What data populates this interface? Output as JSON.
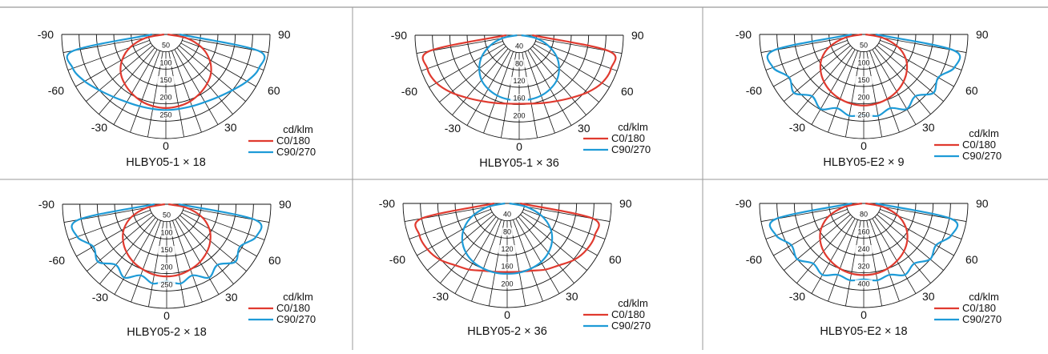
{
  "colors": {
    "c0": "#e03a2f",
    "c90": "#1e9bd7",
    "grid": "#111111",
    "frame": "#9a9a9a"
  },
  "chart_data": [
    {
      "type": "polar",
      "title": "HLBY05-1 × 18",
      "unit": "cd/klm",
      "angle_labels": {
        "left_top": "-90",
        "right_top": "90",
        "left_60": "-60",
        "right_60": "60",
        "left_30": "-30",
        "right_30": "30",
        "bottom": "0"
      },
      "ring_labels": [
        "50",
        "100",
        "150",
        "200",
        "250"
      ],
      "r_max": 300,
      "series": [
        {
          "name": "C0/180",
          "angles": [
            0,
            10,
            20,
            30,
            40,
            50,
            60,
            70,
            80,
            90
          ],
          "values": [
            212,
            210,
            205,
            196,
            185,
            170,
            145,
            110,
            60,
            5
          ]
        },
        {
          "name": "C90/270",
          "angles": [
            0,
            10,
            20,
            30,
            40,
            50,
            60,
            70,
            80,
            90
          ],
          "values": [
            218,
            218,
            220,
            225,
            235,
            250,
            270,
            285,
            270,
            40
          ]
        }
      ]
    },
    {
      "type": "polar",
      "title": "HLBY05-1 × 36",
      "unit": "cd/klm",
      "angle_labels": {
        "left_top": "-90",
        "right_top": "90",
        "left_60": "-60",
        "right_60": "60",
        "left_30": "-30",
        "right_30": "30",
        "bottom": "0"
      },
      "ring_labels": [
        "40",
        "80",
        "120",
        "160",
        "200"
      ],
      "r_max": 240,
      "series": [
        {
          "name": "C0/180",
          "angles": [
            0,
            10,
            20,
            30,
            40,
            50,
            60,
            70,
            80,
            90
          ],
          "values": [
            158,
            160,
            166,
            175,
            188,
            205,
            220,
            225,
            210,
            30
          ]
        },
        {
          "name": "C90/270",
          "angles": [
            0,
            10,
            20,
            30,
            40,
            50,
            60,
            70,
            80,
            90
          ],
          "values": [
            150,
            150,
            148,
            143,
            135,
            120,
            100,
            72,
            40,
            5
          ]
        }
      ]
    },
    {
      "type": "polar",
      "title": "HLBY05-E2 × 9",
      "unit": "cd/klm",
      "angle_labels": {
        "left_top": "-90",
        "right_top": "90",
        "left_60": "-60",
        "right_60": "60",
        "left_30": "-30",
        "right_30": "30",
        "bottom": "0"
      },
      "ring_labels": [
        "50",
        "100",
        "150",
        "200",
        "250"
      ],
      "r_max": 300,
      "series": [
        {
          "name": "C0/180",
          "angles": [
            0,
            10,
            20,
            30,
            40,
            50,
            60,
            70,
            80,
            90
          ],
          "values": [
            205,
            203,
            198,
            190,
            178,
            162,
            140,
            105,
            55,
            5
          ]
        },
        {
          "name": "C90/270",
          "angles": [
            0,
            10,
            20,
            30,
            40,
            50,
            60,
            70,
            80,
            90
          ],
          "values": [
            232,
            238,
            226,
            248,
            232,
            262,
            248,
            278,
            262,
            35
          ]
        }
      ]
    },
    {
      "type": "polar",
      "title": "HLBY05-2 × 18",
      "unit": "cd/klm",
      "angle_labels": {
        "left_top": "-90",
        "right_top": "90",
        "left_60": "-60",
        "right_60": "60",
        "left_30": "-30",
        "right_30": "30",
        "bottom": "0"
      },
      "ring_labels": [
        "50",
        "100",
        "150",
        "200",
        "250"
      ],
      "r_max": 300,
      "series": [
        {
          "name": "C0/180",
          "angles": [
            0,
            10,
            20,
            30,
            40,
            50,
            60,
            70,
            80,
            90
          ],
          "values": [
            208,
            206,
            200,
            192,
            180,
            164,
            142,
            108,
            58,
            5
          ]
        },
        {
          "name": "C90/270",
          "angles": [
            0,
            10,
            20,
            30,
            40,
            50,
            60,
            70,
            80,
            90
          ],
          "values": [
            222,
            232,
            218,
            244,
            228,
            258,
            244,
            274,
            258,
            35
          ]
        }
      ]
    },
    {
      "type": "polar",
      "title": "HLBY05-2 × 36",
      "unit": "cd/klm",
      "angle_labels": {
        "left_top": "-90",
        "right_top": "90",
        "left_60": "-60",
        "right_60": "60",
        "left_30": "-30",
        "right_30": "30",
        "bottom": "0"
      },
      "ring_labels": [
        "40",
        "80",
        "120",
        "160",
        "200"
      ],
      "r_max": 240,
      "series": [
        {
          "name": "C0/180",
          "angles": [
            0,
            10,
            20,
            30,
            40,
            50,
            60,
            70,
            80,
            90
          ],
          "values": [
            158,
            160,
            165,
            176,
            186,
            202,
            212,
            215,
            200,
            30
          ]
        },
        {
          "name": "C90/270",
          "angles": [
            0,
            10,
            20,
            30,
            40,
            50,
            60,
            70,
            80,
            90
          ],
          "values": [
            162,
            162,
            160,
            156,
            148,
            135,
            115,
            85,
            45,
            5
          ]
        }
      ]
    },
    {
      "type": "polar",
      "title": "HLBY05-E2 × 18",
      "unit": "cd/klm",
      "angle_labels": {
        "left_top": "-90",
        "right_top": "90",
        "left_60": "-60",
        "right_60": "60",
        "left_30": "-30",
        "right_30": "30",
        "bottom": "0"
      },
      "ring_labels": [
        "80",
        "160",
        "240",
        "320",
        "400"
      ],
      "r_max": 480,
      "series": [
        {
          "name": "C0/180",
          "angles": [
            0,
            10,
            20,
            30,
            40,
            50,
            60,
            70,
            80,
            90
          ],
          "values": [
            330,
            328,
            320,
            306,
            288,
            262,
            225,
            170,
            90,
            8
          ]
        },
        {
          "name": "C90/270",
          "angles": [
            0,
            10,
            20,
            30,
            40,
            50,
            60,
            70,
            80,
            90
          ],
          "values": [
            350,
            360,
            350,
            380,
            362,
            400,
            385,
            430,
            410,
            55
          ]
        }
      ]
    }
  ]
}
